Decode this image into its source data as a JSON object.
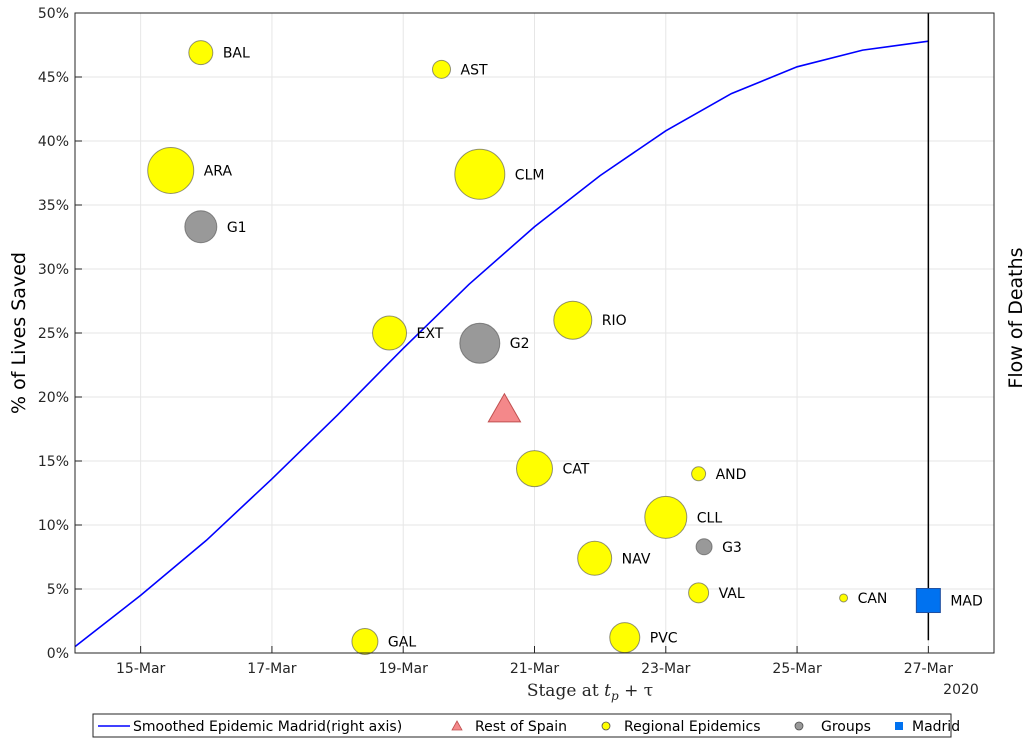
{
  "chart_data": {
    "type": "scatter",
    "xlabel": "Stage at t_p + τ",
    "xlabel_parts": {
      "main": "Stage at ",
      "t": "t",
      "sub": "p",
      "rest": " + τ"
    },
    "ylabel": "% of Lives Saved",
    "right_ylabel": "Flow of Deaths",
    "year_label": "2020",
    "x_range": [
      "2020-03-14",
      "2020-03-28"
    ],
    "ylim": [
      0,
      50
    ],
    "grid": true,
    "legend_placement": "bottom",
    "x_ticks": [
      "15-Mar",
      "17-Mar",
      "19-Mar",
      "21-Mar",
      "23-Mar",
      "25-Mar",
      "27-Mar"
    ],
    "x_tick_dates": [
      "2020-03-15",
      "2020-03-17",
      "2020-03-19",
      "2020-03-21",
      "2020-03-23",
      "2020-03-25",
      "2020-03-27"
    ],
    "y_ticks": [
      "0%",
      "5%",
      "10%",
      "15%",
      "20%",
      "25%",
      "30%",
      "35%",
      "40%",
      "45%",
      "50%"
    ],
    "y_tick_values": [
      0,
      5,
      10,
      15,
      20,
      25,
      30,
      35,
      40,
      45,
      50
    ],
    "line_series": {
      "name": "Smoothed Epidemic Madrid(right axis)",
      "color": "#0000ff",
      "points": [
        {
          "x": "2020-03-14",
          "y": 0.5
        },
        {
          "x": "2020-03-15",
          "y": 4.5
        },
        {
          "x": "2020-03-16",
          "y": 8.8
        },
        {
          "x": "2020-03-17",
          "y": 13.6
        },
        {
          "x": "2020-03-18",
          "y": 18.6
        },
        {
          "x": "2020-03-19",
          "y": 23.8
        },
        {
          "x": "2020-03-20",
          "y": 28.8
        },
        {
          "x": "2020-03-21",
          "y": 33.3
        },
        {
          "x": "2020-03-22",
          "y": 37.3
        },
        {
          "x": "2020-03-23",
          "y": 40.8
        },
        {
          "x": "2020-03-24",
          "y": 43.7
        },
        {
          "x": "2020-03-25",
          "y": 45.8
        },
        {
          "x": "2020-03-26",
          "y": 47.1
        },
        {
          "x": "2020-03-27",
          "y": 47.8
        }
      ]
    },
    "vline": {
      "x": "2020-03-27",
      "y_from": 1,
      "y_to": 50,
      "color": "#000000"
    },
    "series": [
      {
        "name": "Rest of Spain",
        "marker": "triangle",
        "color": "#f4888a",
        "points": [
          {
            "label": "",
            "x": "2020-03-20 13:00",
            "y": 19.0,
            "size": 14
          }
        ]
      },
      {
        "name": "Regional Epidemics",
        "marker": "circle",
        "color": "#ffff00",
        "points": [
          {
            "label": "BAL",
            "x": "2020-03-15 22:00",
            "y": 46.9,
            "size": 12
          },
          {
            "label": "AST",
            "x": "2020-03-19 14:00",
            "y": 45.6,
            "size": 9
          },
          {
            "label": "ARA",
            "x": "2020-03-15 11:00",
            "y": 37.7,
            "size": 23
          },
          {
            "label": "CLM",
            "x": "2020-03-20 04:00",
            "y": 37.4,
            "size": 25
          },
          {
            "label": "EXT",
            "x": "2020-03-18 19:00",
            "y": 25.0,
            "size": 17
          },
          {
            "label": "RIO",
            "x": "2020-03-21 14:00",
            "y": 26.0,
            "size": 19
          },
          {
            "label": "CAT",
            "x": "2020-03-21 00:00",
            "y": 14.4,
            "size": 18
          },
          {
            "label": "AND",
            "x": "2020-03-23 12:00",
            "y": 14.0,
            "size": 7
          },
          {
            "label": "CLL",
            "x": "2020-03-23 00:00",
            "y": 10.6,
            "size": 21
          },
          {
            "label": "NAV",
            "x": "2020-03-21 22:00",
            "y": 7.4,
            "size": 17
          },
          {
            "label": "VAL",
            "x": "2020-03-23 12:00",
            "y": 4.7,
            "size": 10
          },
          {
            "label": "CAN",
            "x": "2020-03-25 17:00",
            "y": 4.3,
            "size": 4
          },
          {
            "label": "GAL",
            "x": "2020-03-18 10:00",
            "y": 0.9,
            "size": 13
          },
          {
            "label": "PVC",
            "x": "2020-03-22 09:00",
            "y": 1.2,
            "size": 15
          }
        ]
      },
      {
        "name": "Groups",
        "marker": "circle",
        "color": "#999999",
        "points": [
          {
            "label": "G1",
            "x": "2020-03-15 22:00",
            "y": 33.3,
            "size": 16
          },
          {
            "label": "G2",
            "x": "2020-03-20 04:00",
            "y": 24.2,
            "size": 20
          },
          {
            "label": "G3",
            "x": "2020-03-23 14:00",
            "y": 8.3,
            "size": 8
          }
        ]
      },
      {
        "name": "Madrid",
        "marker": "square",
        "color": "#0072f0",
        "points": [
          {
            "label": "MAD",
            "x": "2020-03-27 00:00",
            "y": 4.1,
            "size": 12
          }
        ]
      }
    ]
  }
}
